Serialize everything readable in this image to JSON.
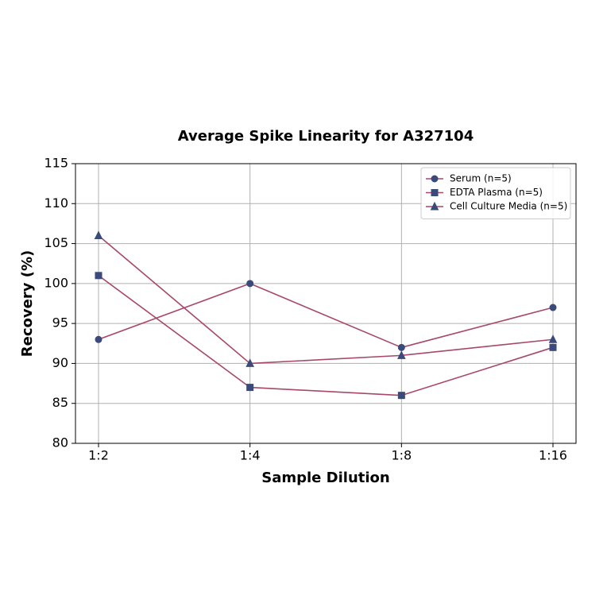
{
  "chart_data": {
    "type": "line",
    "title": "Average Spike Linearity for A327104",
    "x_label": "Sample Dilution",
    "y_label": "Recovery (%)",
    "categories": [
      "1:2",
      "1:4",
      "1:8",
      "1:16"
    ],
    "series": [
      {
        "name": "Serum (n=5)",
        "color": "#a8476c",
        "marker_color": "#3a4a7a",
        "marker": "circle",
        "values": [
          93,
          100,
          92,
          97
        ]
      },
      {
        "name": "EDTA Plasma (n=5)",
        "color": "#a8476c",
        "marker_color": "#3a4a7a",
        "marker": "square",
        "values": [
          101,
          87,
          86,
          92
        ]
      },
      {
        "name": "Cell Culture Media (n=5)",
        "color": "#a8476c",
        "marker_color": "#3a4a7a",
        "marker": "triangle",
        "values": [
          106,
          90,
          91,
          93
        ]
      }
    ],
    "ylim": [
      80,
      115
    ],
    "yticks": [
      80,
      85,
      90,
      95,
      100,
      105,
      110,
      115
    ],
    "grid": true,
    "legend": "upper right"
  }
}
